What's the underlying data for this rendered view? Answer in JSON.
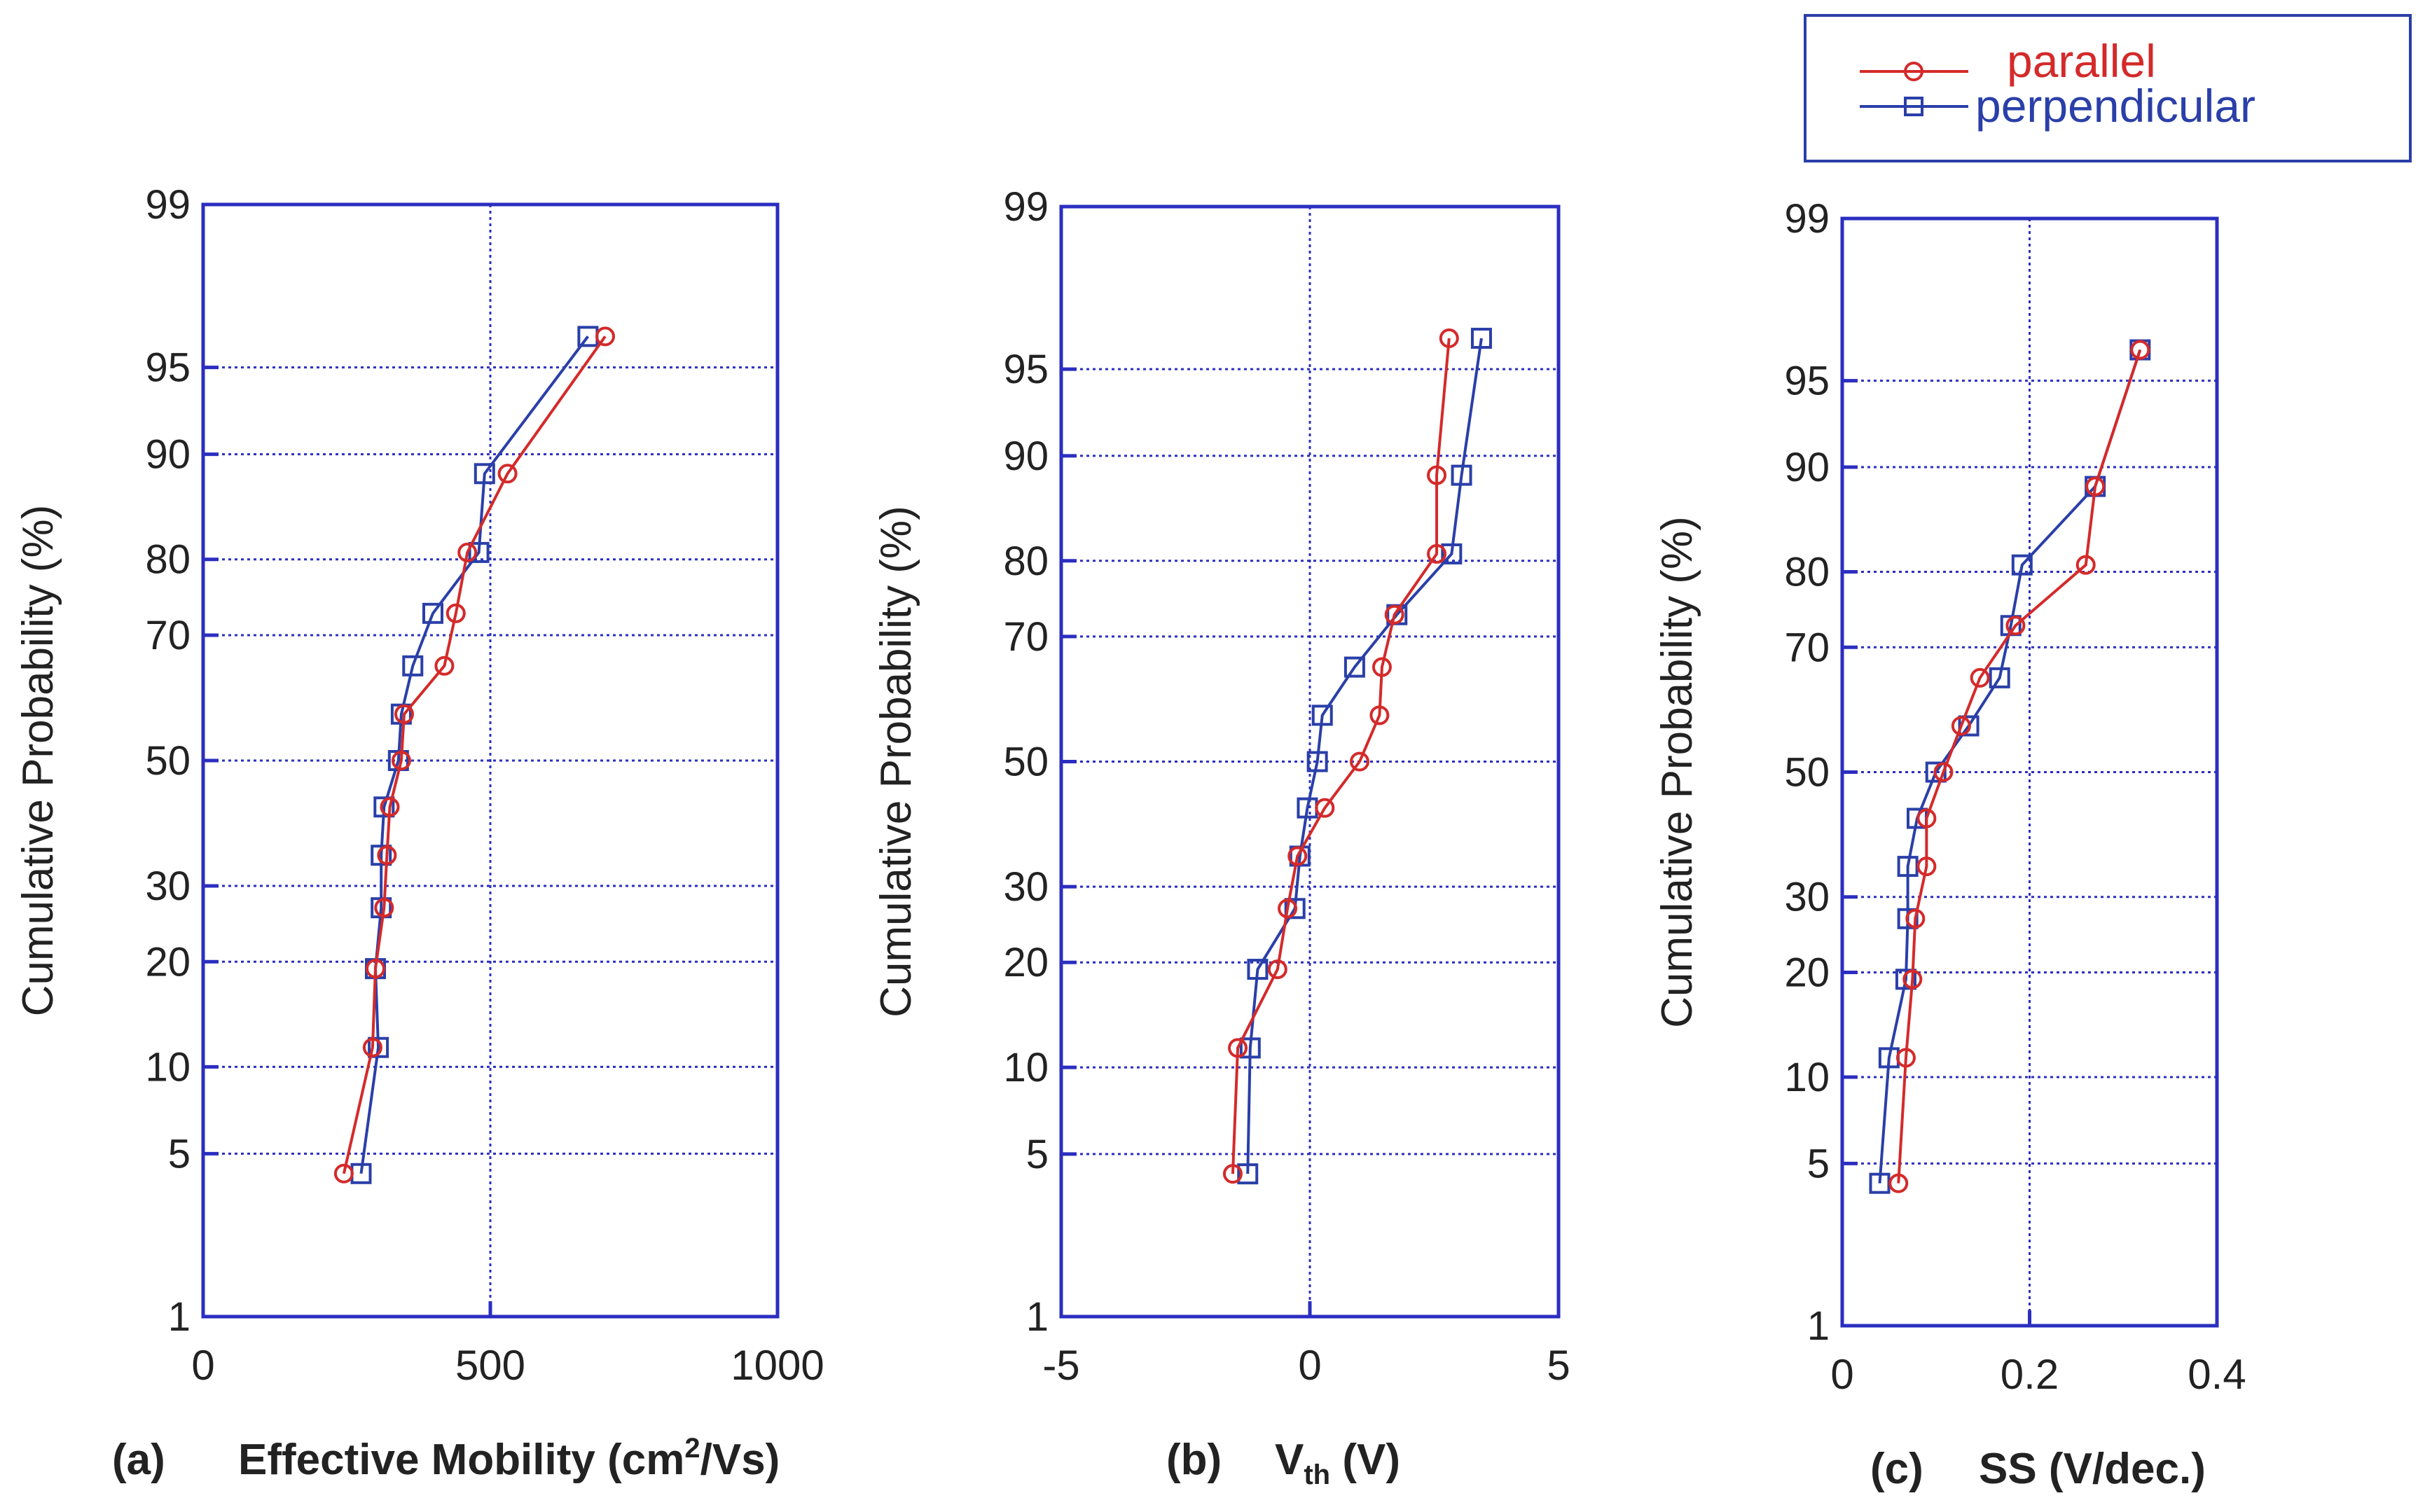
{
  "legend": {
    "entries": [
      {
        "label": "parallel",
        "color": "#d42a2a",
        "marker": "circle"
      },
      {
        "label": "perpendicular",
        "color": "#2a3fa8",
        "marker": "square"
      }
    ]
  },
  "colors": {
    "frame": "#2b2ec0",
    "grid": "#2b2ec0",
    "parallel": "#d42a2a",
    "perpendicular": "#2a3fa8",
    "text": "#222222"
  },
  "chart_data": [
    {
      "type": "line",
      "panel": "(a)",
      "title": "",
      "xlabel_prefix": "Effective Mobility (cm",
      "xlabel_sup": "2",
      "xlabel_suffix": "/Vs)",
      "ylabel": "Cumulative Probability (%)",
      "xlim": [
        0,
        1000
      ],
      "xticks": [
        0,
        500,
        1000
      ],
      "xtick_labels": [
        "0",
        "500",
        "1000"
      ],
      "ylim": [
        1,
        99
      ],
      "yscale": "normal-probability",
      "yticks": [
        1,
        5,
        10,
        20,
        30,
        50,
        70,
        80,
        90,
        95,
        99
      ],
      "ytick_labels": [
        "1",
        "5",
        "10",
        "20",
        "30",
        "50",
        "70",
        "80",
        "90",
        "95",
        "99"
      ],
      "grid": true,
      "series": [
        {
          "name": "parallel",
          "x": [
            245,
            295,
            300,
            315,
            320,
            325,
            345,
            350,
            420,
            440,
            460,
            530,
            700
          ],
          "y": [
            4.2,
            11.5,
            19.2,
            26.9,
            34.6,
            42.3,
            50.0,
            57.7,
            65.4,
            73.1,
            80.8,
            88.5,
            96.2
          ]
        },
        {
          "name": "perpendicular",
          "x": [
            275,
            305,
            300,
            310,
            310,
            315,
            340,
            345,
            365,
            400,
            480,
            490,
            670
          ],
          "y": [
            4.2,
            11.5,
            19.2,
            26.9,
            34.6,
            42.3,
            50.0,
            57.7,
            65.4,
            73.1,
            80.8,
            88.5,
            96.2
          ]
        }
      ]
    },
    {
      "type": "line",
      "panel": "(b)",
      "title": "",
      "xlabel_prefix": "V",
      "xlabel_sub": "th",
      "xlabel_suffix": " (V)",
      "ylabel": "Cumulative Probability (%)",
      "xlim": [
        -5,
        5
      ],
      "xticks": [
        -5,
        0,
        5
      ],
      "xtick_labels": [
        "-5",
        "0",
        "5"
      ],
      "ylim": [
        1,
        99
      ],
      "yscale": "normal-probability",
      "yticks": [
        1,
        5,
        10,
        20,
        30,
        50,
        70,
        80,
        90,
        95,
        99
      ],
      "ytick_labels": [
        "1",
        "5",
        "10",
        "20",
        "30",
        "50",
        "70",
        "80",
        "90",
        "95",
        "99"
      ],
      "grid": true,
      "series": [
        {
          "name": "parallel",
          "x": [
            -1.55,
            -1.45,
            -0.65,
            -0.45,
            -0.25,
            0.3,
            1.0,
            1.4,
            1.45,
            1.7,
            2.55,
            2.55,
            2.8
          ],
          "y": [
            4.2,
            11.5,
            19.2,
            26.9,
            34.6,
            42.3,
            50.0,
            57.7,
            65.4,
            73.1,
            80.8,
            88.5,
            96.2
          ]
        },
        {
          "name": "perpendicular",
          "x": [
            -1.25,
            -1.2,
            -1.05,
            -0.3,
            -0.2,
            -0.05,
            0.15,
            0.25,
            0.9,
            1.75,
            2.85,
            3.05,
            3.45
          ],
          "y": [
            4.2,
            11.5,
            19.2,
            26.9,
            34.6,
            42.3,
            50.0,
            57.7,
            65.4,
            73.1,
            80.8,
            88.5,
            96.2
          ]
        }
      ]
    },
    {
      "type": "line",
      "panel": "(c)",
      "title": "",
      "xlabel_prefix": "SS (V/dec.)",
      "xlabel_sup": "",
      "xlabel_suffix": "",
      "ylabel": "Cumulative Probability (%)",
      "xlim": [
        0,
        0.4
      ],
      "xticks": [
        0,
        0.2,
        0.4
      ],
      "xtick_labels": [
        "0",
        "0.2",
        "0.4"
      ],
      "ylim": [
        1,
        99
      ],
      "yscale": "normal-probability",
      "yticks": [
        1,
        5,
        10,
        20,
        30,
        50,
        70,
        80,
        90,
        95,
        99
      ],
      "ytick_labels": [
        "1",
        "5",
        "10",
        "20",
        "30",
        "50",
        "70",
        "80",
        "90",
        "95",
        "99"
      ],
      "grid": true,
      "series": [
        {
          "name": "parallel",
          "x": [
            0.06,
            0.068,
            0.075,
            0.078,
            0.09,
            0.09,
            0.108,
            0.127,
            0.147,
            0.185,
            0.26,
            0.27,
            0.318
          ],
          "y": [
            4.2,
            11.5,
            19.2,
            26.9,
            34.6,
            42.3,
            50.0,
            57.7,
            65.4,
            73.1,
            80.8,
            88.5,
            96.2
          ]
        },
        {
          "name": "perpendicular",
          "x": [
            0.04,
            0.05,
            0.068,
            0.07,
            0.07,
            0.08,
            0.1,
            0.135,
            0.168,
            0.18,
            0.192,
            0.27,
            0.318
          ],
          "y": [
            4.2,
            11.5,
            19.2,
            26.9,
            34.6,
            42.3,
            50.0,
            57.7,
            65.4,
            73.1,
            80.8,
            88.5,
            96.2
          ]
        }
      ]
    }
  ]
}
